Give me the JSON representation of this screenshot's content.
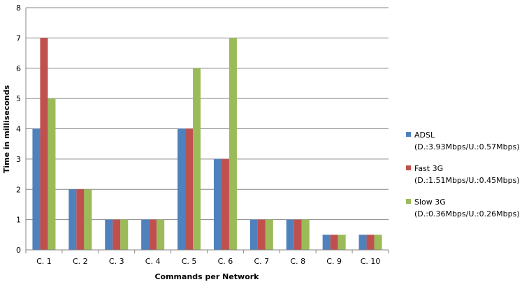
{
  "chart_data": {
    "type": "bar",
    "title": "",
    "xlabel": "Commands per Network",
    "ylabel": "Time in milliseconds",
    "ylim": [
      0,
      8
    ],
    "yticks": [
      0,
      1,
      2,
      3,
      4,
      5,
      6,
      7,
      8
    ],
    "grid": true,
    "legend_position": "right",
    "categories": [
      "C. 1",
      "C. 2",
      "C. 3",
      "C. 4",
      "C. 5",
      "C. 6",
      "C. 7",
      "C. 8",
      "C. 9",
      "C. 10"
    ],
    "series": [
      {
        "name": "ADSL",
        "detail": "(D.:3.93Mbps/U.:0.57Mbps)",
        "color": "#4f81bd",
        "values": [
          4,
          2,
          1,
          1,
          4,
          3,
          1,
          1,
          0.5,
          0.5
        ]
      },
      {
        "name": "Fast 3G",
        "detail": "(D.:1.51Mbps/U.:0.45Mbps)",
        "color": "#c0504d",
        "values": [
          7,
          2,
          1,
          1,
          4,
          3,
          1,
          1,
          0.5,
          0.5
        ]
      },
      {
        "name": "Slow 3G",
        "detail": "(D.:0.36Mbps/U.:0.26Mbps)",
        "color": "#9bbb59",
        "values": [
          5,
          2,
          1,
          1,
          6,
          7,
          1,
          1,
          0.5,
          0.5
        ]
      }
    ]
  }
}
